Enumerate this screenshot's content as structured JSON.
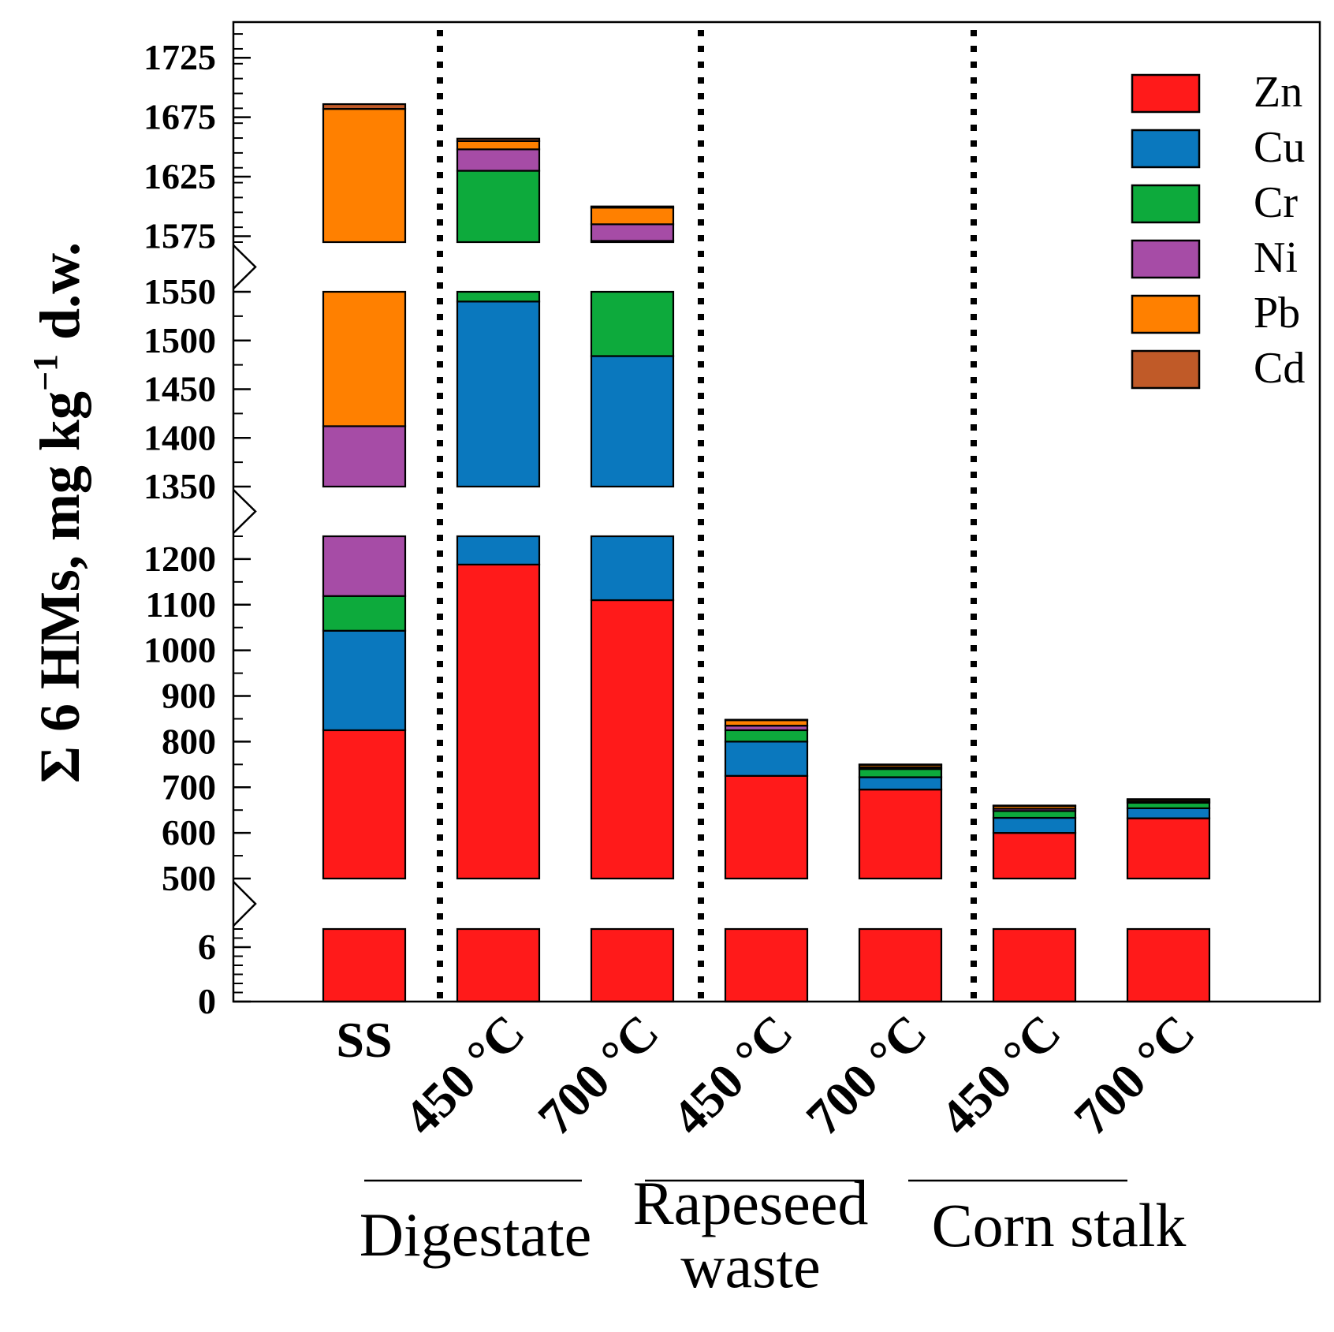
{
  "chart_data": {
    "type": "bar",
    "stacked": true,
    "ylabel_main": "Σ 6 HMs, mg kg",
    "ylabel_sup": "−1",
    "ylabel_tail": " d.w.",
    "axis_breaks": true,
    "y_ticks": [
      "0",
      "6",
      "500",
      "600",
      "700",
      "800",
      "900",
      "1000",
      "1100",
      "1200",
      "1350",
      "1400",
      "1450",
      "1500",
      "1550",
      "1575",
      "1625",
      "1675",
      "1725"
    ],
    "categories": [
      "SS",
      "450 °C",
      "700 °C",
      "450 °C",
      "700 °C",
      "450 °C",
      "700 °C"
    ],
    "groups": [
      {
        "label": "Digestate",
        "categories": [
          1,
          2
        ]
      },
      {
        "label": "Rapeseed waste",
        "label_lines": [
          "Rapeseed",
          "waste"
        ],
        "categories": [
          3,
          4
        ]
      },
      {
        "label": "Corn stalk",
        "categories": [
          5,
          6
        ]
      }
    ],
    "series": [
      {
        "name": "Zn",
        "color": "#ff1a1a",
        "values": [
          825,
          1188,
          1110,
          725,
          695,
          600,
          632
        ]
      },
      {
        "name": "Cu",
        "color": "#0a78be",
        "values": [
          218,
          352,
          374,
          75,
          27,
          33,
          22
        ]
      },
      {
        "name": "Cr",
        "color": "#0daa3c",
        "values": [
          76,
          90,
          87,
          25,
          18,
          15,
          12
        ]
      },
      {
        "name": "Ni",
        "color": "#a64ca6",
        "values": [
          293,
          18,
          14,
          10,
          4,
          5,
          3
        ]
      },
      {
        "name": "Pb",
        "color": "#ff8000",
        "values": [
          270,
          7,
          14,
          12,
          5,
          6,
          4
        ]
      },
      {
        "name": "Cd",
        "color": "#c05a28",
        "values": [
          4,
          2,
          1,
          1,
          1,
          1,
          1
        ]
      }
    ],
    "legend_position": "top-right"
  }
}
